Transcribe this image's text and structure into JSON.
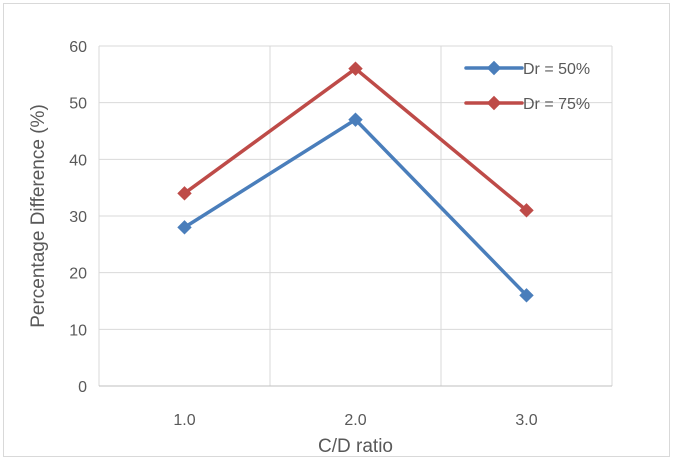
{
  "chart_data": {
    "type": "line",
    "title": "",
    "xlabel": "C/D ratio",
    "ylabel": "Percentage Difference (%)",
    "categories": [
      "1.0",
      "2.0",
      "3.0"
    ],
    "x": [
      1.0,
      2.0,
      3.0
    ],
    "ylim": [
      0,
      60
    ],
    "yticks": [
      "0",
      "10",
      "20",
      "30",
      "40",
      "50",
      "60"
    ],
    "grid": true,
    "legend_position": "top-right",
    "series": [
      {
        "name": "Dr = 50%",
        "color": "#4a7ebb",
        "marker": "diamond",
        "values": [
          28,
          47,
          16
        ]
      },
      {
        "name": "Dr = 75%",
        "color": "#be4b48",
        "marker": "diamond",
        "values": [
          34,
          56,
          31
        ]
      }
    ]
  }
}
